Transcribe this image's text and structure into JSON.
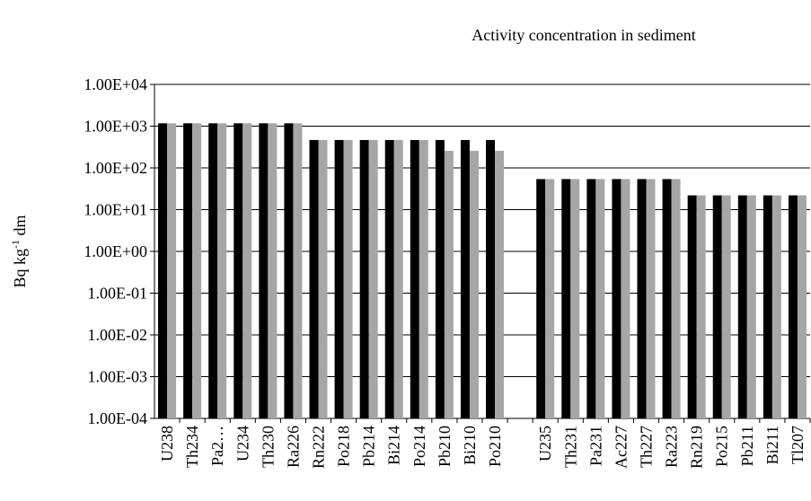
{
  "chart_data": {
    "type": "bar",
    "title": "Activity concentration in sediment",
    "ylabel_parts": [
      "Bq kg",
      "-1",
      " dm"
    ],
    "log_scale": true,
    "grid": true,
    "categories": [
      "U238",
      "Th234",
      "Pa2…",
      "U234",
      "Th230",
      "Ra226",
      "Rn222",
      "Po218",
      "Pb214",
      "Bi214",
      "Po214",
      "Pb210",
      "Bi210",
      "Po210",
      null,
      "U235",
      "Th231",
      "Pa231",
      "Ac227",
      "Th227",
      "Ra223",
      "Rn219",
      "Po215",
      "Pb211",
      "Bi211",
      "Tl207"
    ],
    "series": [
      {
        "color": "#000000",
        "values": [
          1170,
          1170,
          1170,
          1170,
          1170,
          1170,
          465,
          465,
          465,
          465,
          465,
          465,
          465,
          465,
          null,
          54,
          54,
          54,
          54,
          54,
          54,
          22,
          22,
          22,
          22,
          22
        ]
      },
      {
        "color": "#a6a6a6",
        "values": [
          1170,
          1170,
          1170,
          1170,
          1170,
          1170,
          465,
          465,
          465,
          465,
          465,
          257,
          257,
          257,
          null,
          54,
          54,
          54,
          54,
          54,
          54,
          22,
          22,
          22,
          22,
          22
        ]
      }
    ],
    "ylim": [
      0.0001,
      10000
    ],
    "yticks": [
      {
        "value": 0.0001,
        "label": "1.00E-04"
      },
      {
        "value": 0.001,
        "label": "1.00E-03"
      },
      {
        "value": 0.01,
        "label": "1.00E-02"
      },
      {
        "value": 0.1,
        "label": "1.00E-01"
      },
      {
        "value": 1,
        "label": "1.00E+00"
      },
      {
        "value": 10,
        "label": "1.00E+01"
      },
      {
        "value": 100,
        "label": "1.00E+02"
      },
      {
        "value": 1000,
        "label": "1.00E+03"
      },
      {
        "value": 10000,
        "label": "1.00E+04"
      }
    ]
  }
}
